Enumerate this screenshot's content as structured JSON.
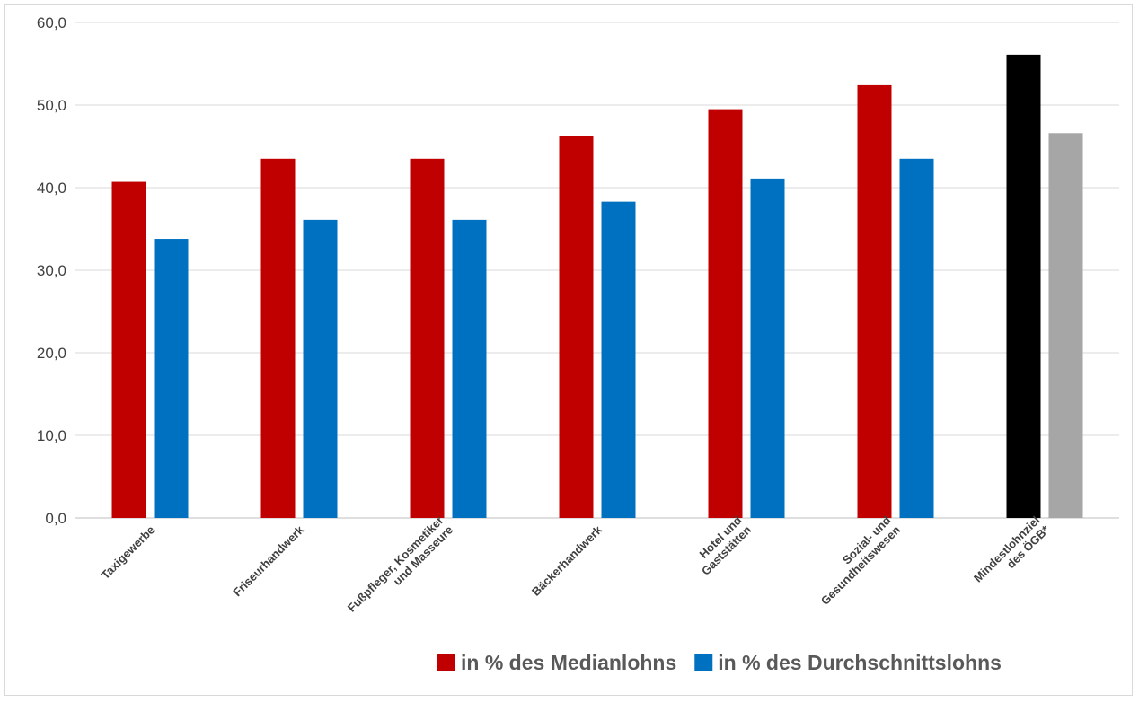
{
  "chart_data": {
    "type": "bar",
    "categories": [
      [
        "Taxigewerbe"
      ],
      [
        "Friseurhandwerk"
      ],
      [
        "Fußpfleger, Kosmetiker",
        "und Masseure"
      ],
      [
        "Bäckerhandwerk"
      ],
      [
        "Hotel und",
        "Gaststätten"
      ],
      [
        "Sozial- und",
        "Gesundheitswesen"
      ],
      [
        "Mindestlohnziel",
        "des ÖGB*"
      ]
    ],
    "series": [
      {
        "name": "in % des Medianlohns",
        "color": "#c00000",
        "values": [
          40.7,
          43.5,
          43.5,
          46.2,
          49.5,
          52.4,
          56.1
        ],
        "point_colors": [
          "#c00000",
          "#c00000",
          "#c00000",
          "#c00000",
          "#c00000",
          "#c00000",
          "#000000"
        ]
      },
      {
        "name": "in % des Durchschnittslohns",
        "color": "#0070c0",
        "values": [
          33.8,
          36.1,
          36.1,
          38.3,
          41.1,
          43.5,
          46.6
        ],
        "point_colors": [
          "#0070c0",
          "#0070c0",
          "#0070c0",
          "#0070c0",
          "#0070c0",
          "#0070c0",
          "#a6a6a6"
        ]
      }
    ],
    "yticks": [
      "0,0",
      "10,0",
      "20,0",
      "30,0",
      "40,0",
      "50,0",
      "60,0"
    ],
    "ylim": [
      0,
      60
    ],
    "grid": true,
    "legend": "bottom-right",
    "title": "",
    "xlabel": "",
    "ylabel": ""
  }
}
